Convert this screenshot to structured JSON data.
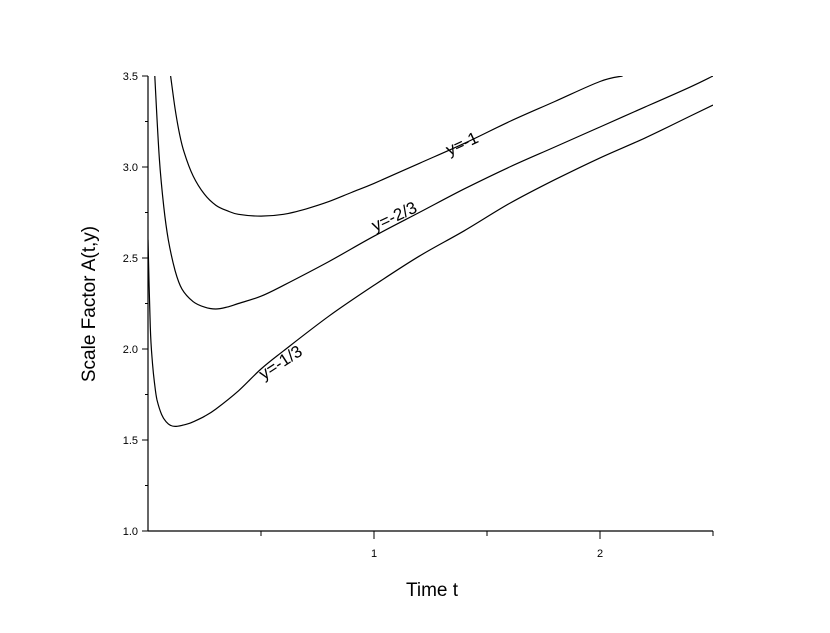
{
  "chart_data": {
    "type": "line",
    "title": "",
    "xlabel": "Time t",
    "ylabel": "Scale Factor A(t,y)",
    "xlim": [
      0,
      2.5
    ],
    "ylim": [
      1.0,
      3.5
    ],
    "x_ticks": [
      {
        "value": 1,
        "label": "1"
      },
      {
        "value": 2,
        "label": "2"
      }
    ],
    "y_ticks": [
      {
        "value": 1.0,
        "label": "1.0"
      },
      {
        "value": 1.5,
        "label": "1.5"
      },
      {
        "value": 2.0,
        "label": "2.0"
      },
      {
        "value": 2.5,
        "label": "2.5"
      },
      {
        "value": 3.0,
        "label": "3.0"
      },
      {
        "value": 3.5,
        "label": "3.5"
      }
    ],
    "grid": false,
    "legend": "none",
    "series": [
      {
        "name": "y=-1",
        "label_at": [
          1.4,
          3.1
        ],
        "label_angle": -25,
        "x": [
          0.1,
          0.12,
          0.14,
          0.16,
          0.2,
          0.25,
          0.3,
          0.35,
          0.4,
          0.5,
          0.6,
          0.7,
          0.8,
          0.9,
          1.0,
          1.2,
          1.4,
          1.6,
          1.8,
          2.0,
          2.1
        ],
        "y": [
          3.5,
          3.32,
          3.18,
          3.08,
          2.95,
          2.85,
          2.79,
          2.76,
          2.74,
          2.73,
          2.74,
          2.77,
          2.81,
          2.86,
          2.91,
          3.02,
          3.13,
          3.25,
          3.36,
          3.47,
          3.5
        ]
      },
      {
        "name": "y=-2/3",
        "label_at": [
          1.1,
          2.7
        ],
        "label_angle": -25,
        "x": [
          0.03,
          0.05,
          0.07,
          0.09,
          0.12,
          0.15,
          0.2,
          0.25,
          0.3,
          0.35,
          0.4,
          0.5,
          0.6,
          0.8,
          1.0,
          1.2,
          1.4,
          1.6,
          1.8,
          2.0,
          2.2,
          2.4,
          2.5
        ],
        "y": [
          3.5,
          3.05,
          2.78,
          2.6,
          2.43,
          2.33,
          2.26,
          2.23,
          2.22,
          2.23,
          2.25,
          2.29,
          2.35,
          2.48,
          2.62,
          2.75,
          2.88,
          3.0,
          3.11,
          3.22,
          3.33,
          3.44,
          3.5
        ]
      },
      {
        "name": "y=-1/3",
        "label_at": [
          0.6,
          1.9
        ],
        "label_angle": -33,
        "x": [
          0.0,
          0.01,
          0.02,
          0.03,
          0.04,
          0.06,
          0.08,
          0.1,
          0.12,
          0.15,
          0.18,
          0.2,
          0.25,
          0.3,
          0.4,
          0.5,
          0.6,
          0.8,
          1.0,
          1.2,
          1.4,
          1.6,
          1.8,
          2.0,
          2.2,
          2.4,
          2.5
        ],
        "y": [
          2.6,
          2.12,
          1.92,
          1.8,
          1.72,
          1.64,
          1.6,
          1.58,
          1.575,
          1.58,
          1.59,
          1.6,
          1.63,
          1.67,
          1.77,
          1.89,
          1.99,
          2.18,
          2.35,
          2.51,
          2.65,
          2.8,
          2.93,
          3.05,
          3.16,
          3.28,
          3.34
        ]
      }
    ]
  }
}
